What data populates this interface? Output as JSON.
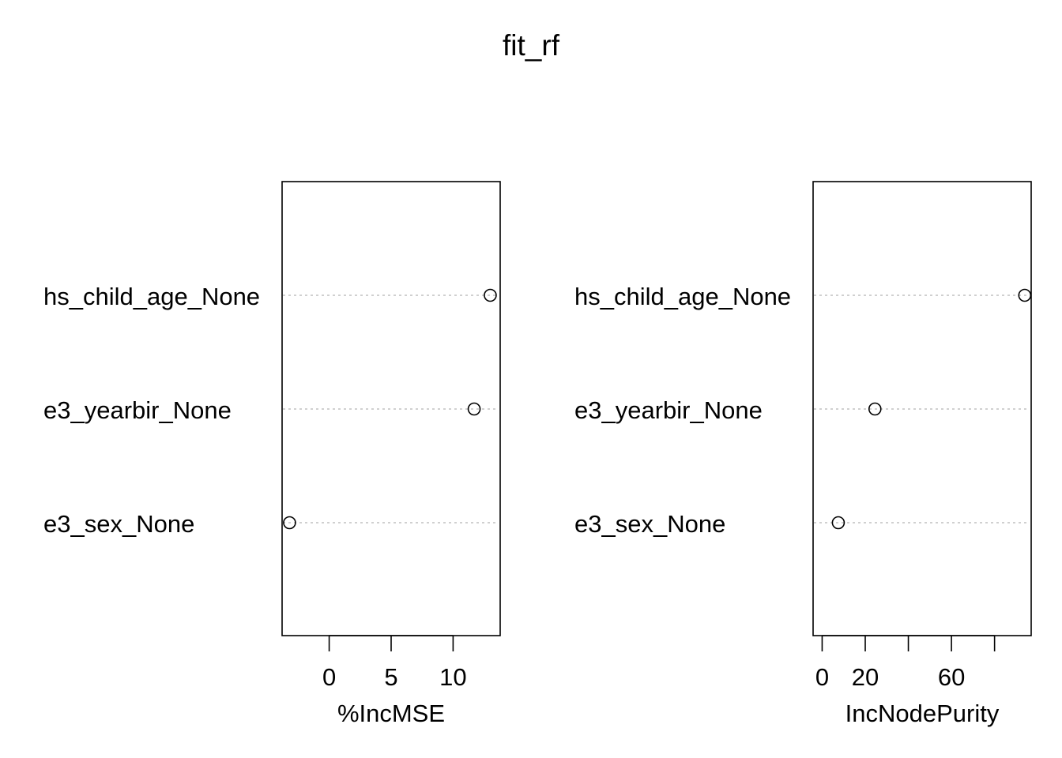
{
  "title": "fit_rf",
  "chart_data": [
    {
      "type": "scatter",
      "xlabel": "%IncMSE",
      "categories": [
        "hs_child_age_None",
        "e3_yearbir_None",
        "e3_sex_None"
      ],
      "values": [
        13.0,
        11.7,
        -3.2
      ],
      "xlim": [
        -3.8,
        13.8
      ],
      "ticks": [
        0,
        5,
        10
      ],
      "tick_labels": [
        "0",
        "5",
        "10"
      ],
      "grid": "dotted-horizontal"
    },
    {
      "type": "scatter",
      "xlabel": "IncNodePurity",
      "categories": [
        "hs_child_age_None",
        "e3_yearbir_None",
        "e3_sex_None"
      ],
      "values": [
        94.0,
        24.5,
        7.5
      ],
      "xlim": [
        -4.2,
        97.0
      ],
      "ticks": [
        0,
        20,
        40,
        60,
        80
      ],
      "tick_labels": [
        "0",
        "20",
        "",
        "60",
        ""
      ],
      "grid": "dotted-horizontal"
    }
  ]
}
